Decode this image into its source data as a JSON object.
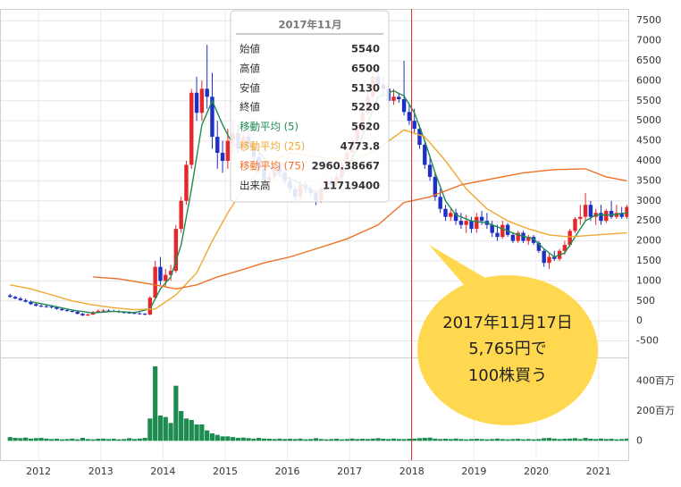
{
  "chart_data": {
    "type": "candlestick",
    "xlim": [
      2011.38,
      2021.48
    ],
    "xticks": [
      2012,
      2013,
      2014,
      2015,
      2016,
      2017,
      2018,
      2019,
      2020,
      2021
    ],
    "ylim": [
      -800,
      7750
    ],
    "yticks": [
      7500,
      7000,
      6500,
      6000,
      5500,
      5000,
      4500,
      4000,
      3500,
      3000,
      2500,
      2000,
      1500,
      1000,
      500,
      0,
      -500
    ],
    "volume_ylim": [
      -130,
      560
    ],
    "volume_yticks": [
      {
        "value": 400,
        "label": "400百万"
      },
      {
        "value": 200,
        "label": "200百万"
      },
      0
    ],
    "grid": true,
    "up_color": "#e5262b",
    "down_color": "#1d2fc6",
    "volume_color": "#1e8c50",
    "x": [
      "2011-07",
      "2011-08",
      "2011-09",
      "2011-10",
      "2011-11",
      "2011-12",
      "2012-01",
      "2012-02",
      "2012-03",
      "2012-04",
      "2012-05",
      "2012-06",
      "2012-07",
      "2012-08",
      "2012-09",
      "2012-10",
      "2012-11",
      "2012-12",
      "2013-01",
      "2013-02",
      "2013-03",
      "2013-04",
      "2013-05",
      "2013-06",
      "2013-07",
      "2013-08",
      "2013-09",
      "2013-10",
      "2013-11",
      "2013-12",
      "2014-01",
      "2014-02",
      "2014-03",
      "2014-04",
      "2014-05",
      "2014-06",
      "2014-07",
      "2014-08",
      "2014-09",
      "2014-10",
      "2014-11",
      "2014-12",
      "2015-01",
      "2015-02",
      "2015-03",
      "2015-04",
      "2015-05",
      "2015-06",
      "2015-07",
      "2015-08",
      "2015-09",
      "2015-10",
      "2015-11",
      "2015-12",
      "2016-01",
      "2016-02",
      "2016-03",
      "2016-04",
      "2016-05",
      "2016-06",
      "2016-07",
      "2016-08",
      "2016-09",
      "2016-10",
      "2016-11",
      "2016-12",
      "2017-01",
      "2017-02",
      "2017-03",
      "2017-04",
      "2017-05",
      "2017-06",
      "2017-07",
      "2017-08",
      "2017-09",
      "2017-10",
      "2017-11",
      "2017-12",
      "2018-01",
      "2018-02",
      "2018-03",
      "2018-04",
      "2018-05",
      "2018-06",
      "2018-07",
      "2018-08",
      "2018-09",
      "2018-10",
      "2018-11",
      "2018-12",
      "2019-01",
      "2019-02",
      "2019-03",
      "2019-04",
      "2019-05",
      "2019-06",
      "2019-07",
      "2019-08",
      "2019-09",
      "2019-10",
      "2019-11",
      "2019-12",
      "2020-01",
      "2020-02",
      "2020-03",
      "2020-04",
      "2020-05",
      "2020-06",
      "2020-07",
      "2020-08",
      "2020-09",
      "2020-10",
      "2020-11",
      "2020-12",
      "2021-01",
      "2021-02",
      "2021-03",
      "2021-04",
      "2021-05",
      "2021-06"
    ],
    "open": [
      640,
      600,
      560,
      520,
      480,
      420,
      380,
      370,
      360,
      340,
      300,
      270,
      250,
      230,
      180,
      140,
      160,
      220,
      250,
      260,
      250,
      240,
      220,
      210,
      200,
      190,
      180,
      160,
      580,
      1350,
      1000,
      1150,
      1250,
      2300,
      3000,
      3900,
      5700,
      5200,
      5800,
      5600,
      4600,
      4200,
      4000,
      4500,
      4700,
      4300,
      4600,
      4400,
      4100,
      3800,
      3500,
      3600,
      3900,
      3700,
      3500,
      3300,
      3100,
      3400,
      3300,
      3200,
      3000,
      3300,
      3500,
      3400,
      3600,
      3900,
      4200,
      4500,
      4800,
      5200,
      5600,
      6100,
      5900,
      5800,
      5500,
      5600,
      5540,
      5220,
      5000,
      4800,
      4400,
      3900,
      3600,
      3100,
      2800,
      2600,
      2700,
      2500,
      2400,
      2500,
      2300,
      2600,
      2500,
      2400,
      2200,
      2100,
      2400,
      2150,
      2000,
      2200,
      2000,
      2100,
      1950,
      1750,
      1450,
      1600,
      1550,
      1750,
      1900,
      2250,
      2550,
      2600,
      2900,
      2600,
      2700,
      2500,
      2750,
      2600,
      2700,
      2600
    ],
    "high": [
      680,
      630,
      600,
      560,
      510,
      450,
      420,
      400,
      390,
      360,
      330,
      300,
      280,
      250,
      200,
      190,
      250,
      290,
      300,
      290,
      280,
      270,
      250,
      240,
      230,
      220,
      200,
      620,
      1500,
      1600,
      1300,
      1400,
      2400,
      3100,
      4000,
      5800,
      6100,
      6000,
      6900,
      6200,
      5000,
      4500,
      4800,
      5000,
      4900,
      4700,
      4800,
      4500,
      4200,
      3900,
      3700,
      4000,
      4000,
      3800,
      3600,
      3400,
      3500,
      3500,
      3400,
      3300,
      3400,
      3600,
      3600,
      3700,
      4000,
      4300,
      4600,
      4900,
      5300,
      5700,
      6200,
      6300,
      6100,
      5900,
      5800,
      5700,
      6500,
      5400,
      5300,
      4900,
      4500,
      4100,
      3700,
      3300,
      2900,
      2800,
      2800,
      2700,
      2650,
      2600,
      2700,
      2750,
      2700,
      2500,
      2400,
      2500,
      2450,
      2200,
      2250,
      2250,
      2150,
      2150,
      2000,
      1800,
      1700,
      1750,
      1800,
      2000,
      2300,
      2600,
      2900,
      3200,
      3000,
      2800,
      2900,
      2800,
      3000,
      2900,
      2850,
      2900
    ],
    "low": [
      580,
      540,
      500,
      460,
      400,
      360,
      340,
      330,
      310,
      280,
      250,
      230,
      210,
      160,
      120,
      120,
      150,
      200,
      230,
      220,
      220,
      200,
      190,
      180,
      170,
      160,
      140,
      140,
      560,
      900,
      850,
      1000,
      1200,
      2200,
      2900,
      3800,
      5000,
      5000,
      5300,
      4300,
      3800,
      3700,
      3800,
      4200,
      4200,
      4200,
      4300,
      4000,
      3700,
      3400,
      3400,
      3500,
      3600,
      3400,
      3200,
      3000,
      3000,
      3200,
      3100,
      2900,
      2950,
      3200,
      3300,
      3350,
      3500,
      3800,
      4100,
      4400,
      4700,
      5100,
      5500,
      5800,
      5600,
      5400,
      5400,
      5450,
      5130,
      4900,
      4700,
      4300,
      3800,
      3500,
      3000,
      2700,
      2500,
      2500,
      2400,
      2300,
      2200,
      2200,
      2200,
      2400,
      2300,
      2100,
      2000,
      2050,
      2100,
      1950,
      1950,
      1950,
      1900,
      1900,
      1700,
      1350,
      1300,
      1500,
      1500,
      1650,
      1850,
      2200,
      2400,
      2500,
      2500,
      2400,
      2400,
      2450,
      2550,
      2550,
      2550,
      2550
    ],
    "close": [
      600,
      560,
      520,
      480,
      420,
      380,
      370,
      360,
      340,
      300,
      270,
      250,
      230,
      180,
      140,
      160,
      220,
      250,
      260,
      250,
      240,
      220,
      210,
      200,
      190,
      180,
      160,
      580,
      1350,
      1000,
      1150,
      1250,
      2300,
      3000,
      3900,
      5700,
      5200,
      5800,
      5600,
      4600,
      4200,
      4000,
      4500,
      4700,
      4300,
      4600,
      4400,
      4100,
      3800,
      3500,
      3600,
      3900,
      3700,
      3500,
      3300,
      3100,
      3400,
      3300,
      3200,
      3000,
      3300,
      3500,
      3400,
      3600,
      3900,
      4200,
      4500,
      4800,
      5200,
      5600,
      6100,
      5900,
      5800,
      5500,
      5600,
      5540,
      5220,
      5000,
      4800,
      4400,
      3900,
      3600,
      3100,
      2800,
      2600,
      2700,
      2500,
      2400,
      2500,
      2300,
      2600,
      2500,
      2400,
      2200,
      2100,
      2400,
      2150,
      2000,
      2200,
      2000,
      2100,
      1950,
      1750,
      1450,
      1600,
      1550,
      1750,
      1900,
      2250,
      2550,
      2600,
      2900,
      2600,
      2700,
      2500,
      2750,
      2600,
      2700,
      2600,
      2850
    ],
    "volume": [
      25,
      20,
      18,
      22,
      15,
      18,
      20,
      15,
      12,
      14,
      10,
      12,
      15,
      10,
      20,
      12,
      10,
      14,
      15,
      12,
      14,
      10,
      12,
      18,
      12,
      15,
      20,
      150,
      500,
      170,
      160,
      120,
      370,
      200,
      150,
      140,
      110,
      110,
      70,
      50,
      40,
      30,
      30,
      25,
      20,
      22,
      18,
      15,
      20,
      15,
      14,
      12,
      15,
      12,
      14,
      12,
      15,
      10,
      12,
      18,
      12,
      10,
      12,
      14,
      10,
      12,
      15,
      12,
      14,
      12,
      15,
      18,
      14,
      12,
      15,
      12,
      11.7194,
      14,
      15,
      18,
      20,
      22,
      15,
      12,
      14,
      12,
      15,
      12,
      10,
      12,
      14,
      12,
      10,
      12,
      15,
      12,
      10,
      12,
      14,
      10,
      12,
      10,
      12,
      18,
      20,
      15,
      12,
      14,
      15,
      18,
      12,
      20,
      14,
      12,
      15,
      12,
      14,
      10,
      12,
      15
    ],
    "moving_averages": [
      {
        "name": "移動平均 (5)",
        "color": "#1e8c50",
        "x": [
          "2011-11",
          "2012-03",
          "2012-07",
          "2012-11",
          "2013-03",
          "2013-07",
          "2013-10",
          "2013-12",
          "2014-02",
          "2014-04",
          "2014-06",
          "2014-08",
          "2014-10",
          "2014-12",
          "2015-02",
          "2015-06",
          "2015-10",
          "2016-02",
          "2016-06",
          "2016-10",
          "2017-02",
          "2017-06",
          "2017-09",
          "2017-11",
          "2018-01",
          "2018-03",
          "2018-05",
          "2018-07",
          "2018-09",
          "2018-12",
          "2019-03",
          "2019-06",
          "2019-09",
          "2019-12",
          "2020-02",
          "2020-04",
          "2020-06",
          "2020-08",
          "2020-10",
          "2020-12",
          "2021-03",
          "2021-06"
        ],
        "values": [
          480,
          380,
          270,
          200,
          240,
          210,
          300,
          800,
          1100,
          1900,
          3300,
          4900,
          5500,
          4900,
          4400,
          4400,
          3700,
          3500,
          3200,
          3400,
          4300,
          5600,
          5750,
          5620,
          5200,
          4500,
          3700,
          3000,
          2650,
          2500,
          2450,
          2300,
          2150,
          2050,
          1800,
          1600,
          1700,
          2100,
          2500,
          2650,
          2650,
          2700
        ]
      },
      {
        "name": "移動平均 (25)",
        "color": "#f0a830",
        "x": [
          "2011-07",
          "2011-11",
          "2012-03",
          "2012-07",
          "2012-11",
          "2013-03",
          "2013-07",
          "2013-11",
          "2014-03",
          "2014-07",
          "2014-10",
          "2015-01",
          "2015-04",
          "2015-08",
          "2016-01",
          "2016-06",
          "2017-01",
          "2017-06",
          "2017-11",
          "2018-03",
          "2018-07",
          "2018-11",
          "2019-03",
          "2019-07",
          "2019-11",
          "2020-03",
          "2020-07",
          "2020-12",
          "2021-06"
        ],
        "values": [
          900,
          800,
          650,
          500,
          400,
          330,
          280,
          300,
          650,
          1200,
          2000,
          2700,
          3300,
          3900,
          4200,
          4100,
          4000,
          4300,
          4773.8,
          4600,
          4000,
          3300,
          2800,
          2500,
          2300,
          2150,
          2100,
          2150,
          2200
        ]
      },
      {
        "name": "移動平均 (75)",
        "color": "#f07028",
        "x": [
          "2012-11",
          "2013-04",
          "2013-11",
          "2014-03",
          "2014-07",
          "2014-11",
          "2015-03",
          "2015-08",
          "2016-01",
          "2016-06",
          "2016-12",
          "2017-06",
          "2017-11",
          "2018-04",
          "2018-10",
          "2019-04",
          "2019-10",
          "2020-04",
          "2020-10",
          "2021-02",
          "2021-06"
        ],
        "values": [
          1100,
          1050,
          900,
          800,
          900,
          1100,
          1250,
          1450,
          1600,
          1800,
          2050,
          2400,
          2960.38667,
          3100,
          3400,
          3550,
          3700,
          3780,
          3800,
          3600,
          3500
        ]
      }
    ],
    "tooltip": {
      "title": "2017年11月",
      "labels": [
        "始値",
        "高値",
        "安値",
        "終値",
        "出来高"
      ],
      "volume": 11719400
    },
    "annotation": {
      "lines": [
        "2017年11月17日",
        "5,765円で",
        "100株買う"
      ],
      "color": "#ffd84f"
    }
  }
}
